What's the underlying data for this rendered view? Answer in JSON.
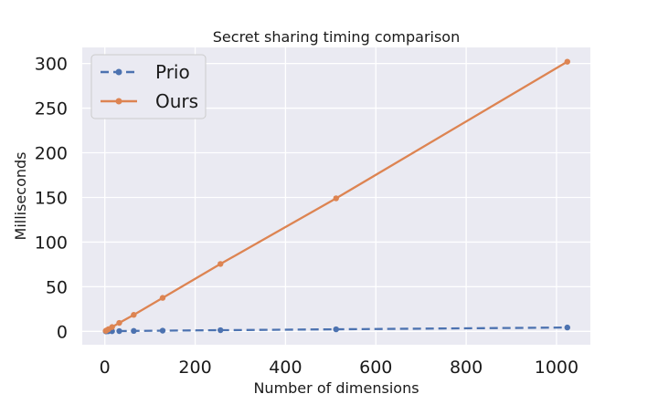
{
  "chart_data": {
    "type": "line",
    "title": "Secret sharing timing comparison",
    "xlabel": "Number of dimensions",
    "ylabel": "Milliseconds",
    "xlim": [
      -50,
      1075
    ],
    "ylim": [
      -15,
      318
    ],
    "xticks": [
      0,
      200,
      400,
      600,
      800,
      1000
    ],
    "yticks": [
      0,
      50,
      100,
      150,
      200,
      250,
      300
    ],
    "grid": true,
    "legend_position": "top-left",
    "series": [
      {
        "name": "Prio",
        "color": "#4c72b0",
        "style": "dashed",
        "x": [
          2,
          4,
          8,
          16,
          32,
          64,
          128,
          256,
          512,
          1024
        ],
        "y": [
          0.05,
          0.1,
          0.15,
          0.2,
          0.3,
          0.5,
          0.8,
          1.3,
          2.3,
          4.3
        ]
      },
      {
        "name": "Ours",
        "color": "#dd8452",
        "style": "solid",
        "x": [
          2,
          4,
          8,
          16,
          32,
          64,
          128,
          256,
          512,
          1024
        ],
        "y": [
          0.6,
          1.2,
          2.4,
          4.8,
          9.5,
          18.5,
          37.5,
          75.5,
          149,
          302
        ]
      }
    ]
  }
}
